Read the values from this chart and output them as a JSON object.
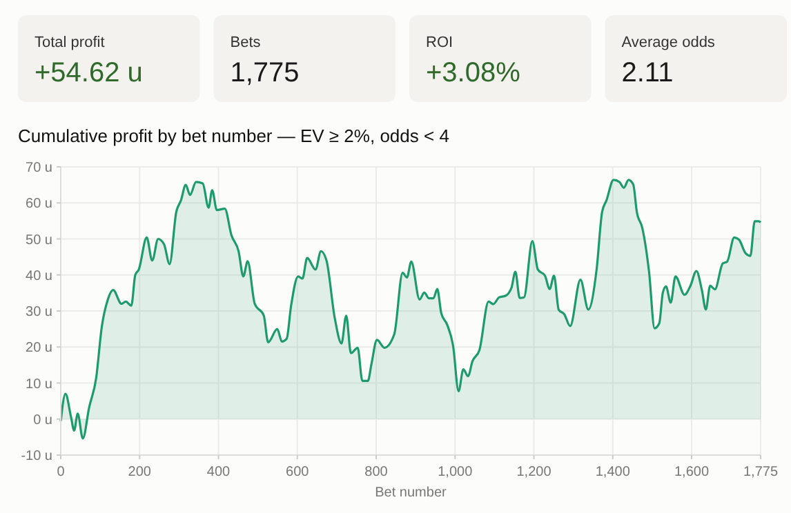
{
  "chart_data": [
    {
      "type": "other",
      "categories": [
        "Total profit",
        "Bets",
        "ROI",
        "Average odds"
      ],
      "value_labels": [
        "+54.62 u",
        "1,775",
        "+3.08%",
        "2.11"
      ],
      "colors": [
        "#2f6a2a",
        "#1a1a1a",
        "#2f6a2a",
        "#1a1a1a"
      ]
    },
    {
      "type": "area",
      "title": "Cumulative profit by bet number — EV ≥ 2%, odds < 4",
      "xlabel": "Bet number",
      "x": [
        0,
        12,
        26,
        34,
        43,
        56,
        72,
        90,
        104,
        119,
        133,
        154,
        165,
        179,
        189,
        198,
        218,
        232,
        247,
        262,
        276,
        293,
        305,
        317,
        328,
        343,
        360,
        375,
        384,
        396,
        416,
        433,
        451,
        463,
        474,
        492,
        515,
        526,
        549,
        561,
        573,
        584,
        602,
        613,
        625,
        646,
        660,
        674,
        695,
        712,
        724,
        736,
        753,
        765,
        779,
        788,
        802,
        821,
        846,
        867,
        878,
        889,
        910,
        922,
        934,
        945,
        955,
        965,
        980,
        995,
        1009,
        1021,
        1033,
        1044,
        1062,
        1085,
        1097,
        1112,
        1128,
        1143,
        1153,
        1164,
        1175,
        1196,
        1210,
        1228,
        1240,
        1251,
        1263,
        1277,
        1292,
        1318,
        1338,
        1359,
        1373,
        1384,
        1402,
        1417,
        1428,
        1440,
        1452,
        1461,
        1475,
        1492,
        1506,
        1518,
        1527,
        1535,
        1547,
        1559,
        1582,
        1597,
        1612,
        1626,
        1636,
        1647,
        1659,
        1679,
        1690,
        1708,
        1720,
        1737,
        1749,
        1760,
        1770,
        1775
      ],
      "series": [
        {
          "color": "#1e9a6e",
          "values": [
            -0.6,
            7,
            0.6,
            -3.2,
            1.5,
            -5.4,
            3.2,
            11.5,
            25.5,
            33,
            35.8,
            32,
            32.6,
            31.5,
            40,
            41.5,
            50.4,
            44,
            50,
            48.5,
            43,
            57.5,
            60.7,
            65,
            62.2,
            65.8,
            65.4,
            58.7,
            63.5,
            58,
            58.4,
            51,
            46.6,
            39.6,
            43.8,
            32,
            28.7,
            21.3,
            25,
            21.5,
            22.3,
            31.3,
            39.6,
            39,
            44.7,
            41.5,
            46.6,
            44,
            28,
            21,
            28.7,
            18.3,
            19.8,
            10.6,
            10.6,
            15.3,
            22,
            19.8,
            23.6,
            40.6,
            39.3,
            43.7,
            33.2,
            35.1,
            33.5,
            33.5,
            36.1,
            29.4,
            26.2,
            20.4,
            7.7,
            13.8,
            11.9,
            16,
            19.2,
            32.6,
            31.9,
            33.8,
            34.2,
            36.4,
            40.9,
            33.6,
            33.8,
            49.4,
            41.5,
            39.8,
            36.1,
            39.8,
            30.3,
            29.1,
            25.8,
            38.7,
            30.4,
            41.5,
            57.5,
            60.7,
            66.4,
            65.8,
            64.2,
            66.4,
            65.1,
            57.5,
            53,
            40.9,
            25.2,
            26.6,
            35.1,
            36.8,
            32.3,
            39.6,
            34.5,
            37,
            41.1,
            35.8,
            30.4,
            37,
            36,
            43.2,
            43.7,
            50.4,
            49.8,
            46,
            45.3,
            54.9,
            54.9,
            54.6
          ]
        }
      ],
      "xlim": [
        0,
        1775
      ],
      "xticks": [
        0,
        200,
        400,
        600,
        800,
        {
          "value": 1000,
          "label": "1,000"
        },
        {
          "value": 1200,
          "label": "1,200"
        },
        {
          "value": 1400,
          "label": "1,400"
        },
        {
          "value": 1600,
          "label": "1,600"
        },
        {
          "value": 1775,
          "label": "1,775"
        }
      ],
      "ylim": [
        -10,
        70
      ],
      "yticks": [
        {
          "value": -10,
          "label": "-10 u"
        },
        {
          "value": 0,
          "label": "0 u"
        },
        {
          "value": 10,
          "label": "10 u"
        },
        {
          "value": 20,
          "label": "20 u"
        },
        {
          "value": 30,
          "label": "30 u"
        },
        {
          "value": 40,
          "label": "40 u"
        },
        {
          "value": 50,
          "label": "50 u"
        },
        {
          "value": 60,
          "label": "60 u"
        },
        {
          "value": 70,
          "label": "70 u"
        }
      ],
      "grid": true
    }
  ]
}
